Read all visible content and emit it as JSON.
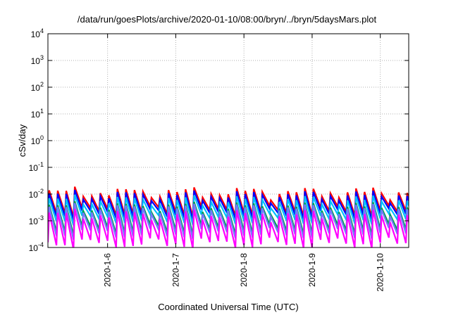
{
  "chart_data": {
    "type": "line",
    "title": "/data/run/goesPlots/archive/2020-01-10/08:00/bryn/../bryn/5daysMars.plot",
    "xlabel": "Coordinated Universal Time (UTC)",
    "ylabel": "cSv/day",
    "xlim": [
      "2020-01-05 03:00",
      "2020-01-10 10:00"
    ],
    "ylim": [
      0.0001,
      10000
    ],
    "yscale": "log",
    "grid": true,
    "x_ticks": [
      "2020-1-6",
      "2020-1-7",
      "2020-1-8",
      "2020-1-9",
      "2020-1-10"
    ],
    "y_ticks": [
      {
        "base": "10",
        "exp": "-4"
      },
      {
        "base": "10",
        "exp": "-3"
      },
      {
        "base": "10",
        "exp": "-2"
      },
      {
        "base": "10",
        "exp": "-1"
      },
      {
        "base": "10",
        "exp": "0"
      },
      {
        "base": "10",
        "exp": "1"
      },
      {
        "base": "10",
        "exp": "2"
      },
      {
        "base": "10",
        "exp": "3"
      },
      {
        "base": "10",
        "exp": "4"
      }
    ],
    "sawtooth_period_hours": 3,
    "series": [
      {
        "color": "#ff0000",
        "peak": 0.0115,
        "trough": 0.0022
      },
      {
        "color": "#0000ff",
        "peak": 0.0088,
        "trough": 0.0017
      },
      {
        "color": "#00c0ff",
        "peak": 0.0058,
        "trough": 0.0011
      },
      {
        "color": "#00a050",
        "peak": 0.0033,
        "trough": 0.00045
      },
      {
        "color": "#7777ff",
        "peak": 0.0028,
        "trough": 0.00032
      },
      {
        "color": "#ff00ff",
        "peak": 0.0017,
        "trough": 0.00014
      }
    ]
  }
}
